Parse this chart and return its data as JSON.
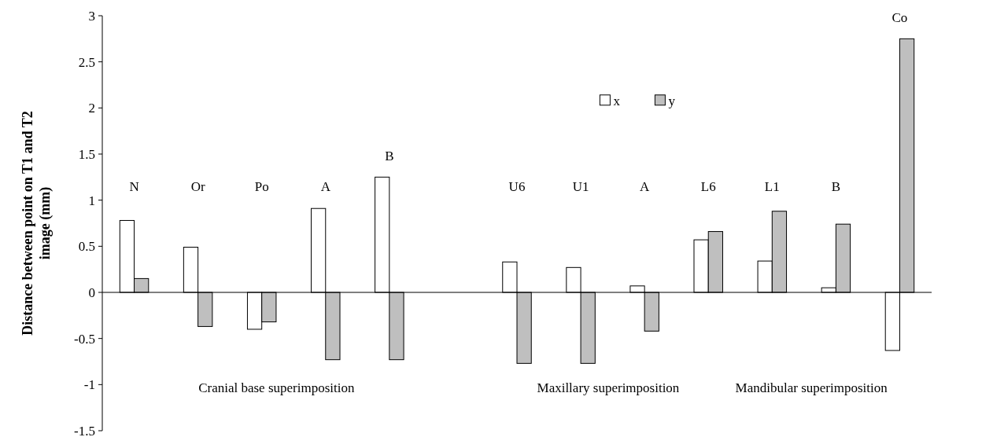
{
  "chart_data": {
    "type": "bar",
    "ylabel": "Distance between point on T1 and T2 image (mm)",
    "categories": [
      "N",
      "Or",
      "Po",
      "A",
      "B",
      null,
      "U6",
      "U1",
      "A",
      "L6",
      "L1",
      "B",
      "Co"
    ],
    "series": [
      {
        "name": "x",
        "color": "#ffffff",
        "values": [
          0.78,
          0.49,
          -0.4,
          0.91,
          1.25,
          null,
          0.33,
          0.27,
          0.07,
          0.57,
          0.34,
          0.05,
          -0.63
        ]
      },
      {
        "name": "y",
        "color": "#bfbfbf",
        "values": [
          0.15,
          -0.37,
          -0.32,
          -0.73,
          -0.73,
          null,
          -0.77,
          -0.77,
          -0.42,
          0.66,
          0.88,
          0.74,
          2.75
        ]
      }
    ],
    "ylim": [
      -1.5,
      3
    ],
    "yticks": [
      -1.5,
      -1,
      -0.5,
      0,
      0.5,
      1,
      1.5,
      2,
      2.5,
      3
    ],
    "annotations": [
      "Cranial base superimposition",
      "Maxillary superimposition",
      "Mandibular superimposition"
    ],
    "legend": "top right"
  }
}
